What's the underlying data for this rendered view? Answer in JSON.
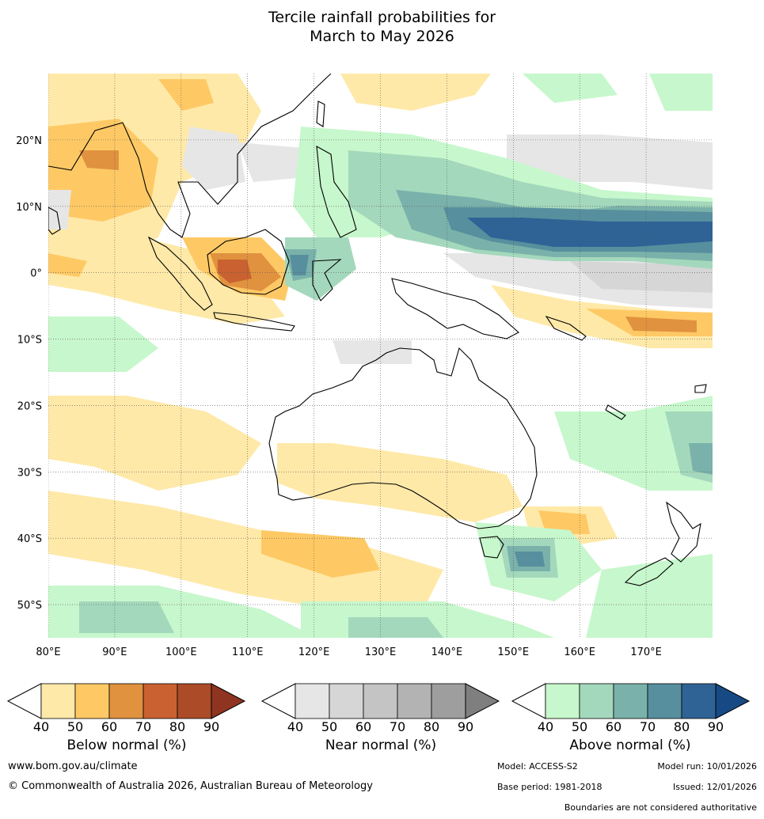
{
  "title": {
    "line1": "Tercile rainfall probabilities for",
    "line2": "March to May 2026"
  },
  "map": {
    "lat_labels": [
      "20°N",
      "10°N",
      "0°",
      "10°S",
      "20°S",
      "30°S",
      "40°S",
      "50°S"
    ],
    "lat_values": [
      20,
      10,
      0,
      -10,
      -20,
      -30,
      -40,
      -50
    ],
    "lon_labels": [
      "80°E",
      "90°E",
      "100°E",
      "110°E",
      "120°E",
      "130°E",
      "140°E",
      "150°E",
      "160°E",
      "170°E"
    ],
    "lon_values": [
      80,
      90,
      100,
      110,
      120,
      130,
      140,
      150,
      160,
      170
    ],
    "lon_range": [
      80,
      180
    ],
    "lat_range": [
      -55,
      30
    ]
  },
  "legends": [
    {
      "name": "Below normal (%)",
      "ticks": [
        "40",
        "50",
        "60",
        "70",
        "80",
        "90"
      ],
      "colors": [
        "#ffffff",
        "#ffe9a8",
        "#fec965",
        "#e0923f",
        "#c96230",
        "#ac4b28",
        "#8f3421"
      ]
    },
    {
      "name": "Near normal (%)",
      "ticks": [
        "40",
        "50",
        "60",
        "70",
        "80",
        "90"
      ],
      "colors": [
        "#ffffff",
        "#e6e6e6",
        "#d6d6d6",
        "#c4c4c4",
        "#b3b3b3",
        "#9e9e9e",
        "#7f7f7f"
      ]
    },
    {
      "name": "Above normal (%)",
      "ticks": [
        "40",
        "50",
        "60",
        "70",
        "80",
        "90"
      ],
      "colors": [
        "#ffffff",
        "#c7f7cc",
        "#a4d8bc",
        "#7ab2ab",
        "#578f9e",
        "#2f6396",
        "#174a85"
      ]
    }
  ],
  "footer": {
    "website": "www.bom.gov.au/climate",
    "copyright": "© Commonwealth of Australia 2026, Australian Bureau of Meteorology",
    "model": "Model: ACCESS-S2",
    "model_run": "Model run: 10/01/2026",
    "base_period": "Base period: 1981-2018",
    "issued": "Issued: 12/01/2026",
    "disclaimer": "Boundaries are not considered authoritative"
  }
}
